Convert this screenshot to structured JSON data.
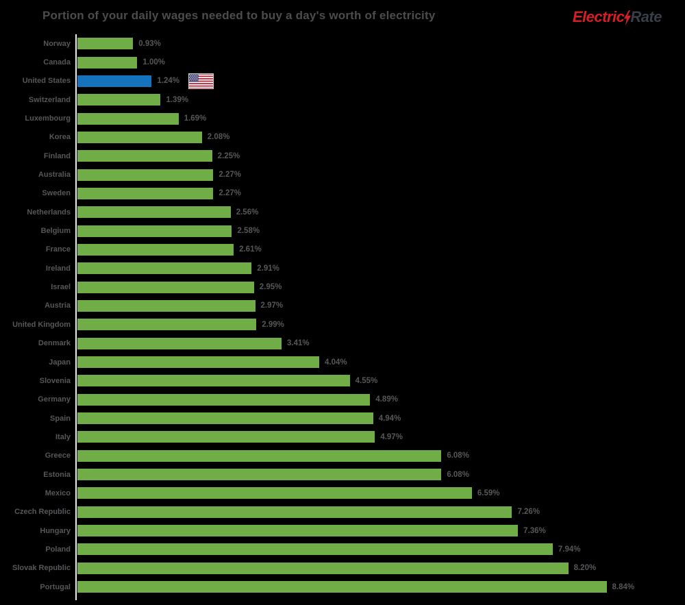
{
  "page": {
    "background": "#000000"
  },
  "header": {
    "title": "Portion of your daily wages needed to buy a day's worth of electricity",
    "logo": {
      "part1": "Electric",
      "part2": "Rate",
      "part1_color": "#d41f27",
      "part2_color": "#3a3e46"
    }
  },
  "chart_data": {
    "type": "bar",
    "orientation": "horizontal",
    "title": "Portion of your daily wages needed to buy a day's worth of electricity",
    "xlabel": "",
    "ylabel": "",
    "xlim": [
      0,
      10
    ],
    "grid": false,
    "legend": false,
    "bar_color": "#70ad47",
    "highlight_color": "#1573bd",
    "highlight_index": 2,
    "highlight_marker": "us-flag",
    "categories": [
      "Norway",
      "Canada",
      "United States",
      "Switzerland",
      "Luxembourg",
      "Korea",
      "Finland",
      "Australia",
      "Sweden",
      "Netherlands",
      "Belgium",
      "France",
      "Ireland",
      "Israel",
      "Austria",
      "United Kingdom",
      "Denmark",
      "Japan",
      "Slovenia",
      "Germany",
      "Spain",
      "Italy",
      "Greece",
      "Estonia",
      "Mexico",
      "Czech Republic",
      "Hungary",
      "Poland",
      "Slovak Republic",
      "Portugal"
    ],
    "values": [
      0.93,
      1.0,
      1.24,
      1.39,
      1.69,
      2.08,
      2.25,
      2.27,
      2.27,
      2.56,
      2.58,
      2.61,
      2.91,
      2.95,
      2.97,
      2.99,
      3.41,
      4.04,
      4.55,
      4.89,
      4.94,
      4.97,
      6.08,
      6.08,
      6.59,
      7.26,
      7.36,
      7.94,
      8.2,
      8.84
    ],
    "labels": [
      "0.93%",
      "1.00%",
      "1.24%",
      "1.39%",
      "1.69%",
      "2.08%",
      "2.25%",
      "2.27%",
      "2.27%",
      "2.56%",
      "2.58%",
      "2.61%",
      "2.91%",
      "2.95%",
      "2.97%",
      "2.99%",
      "3.41%",
      "4.04%",
      "4.55%",
      "4.89%",
      "4.94%",
      "4.97%",
      "6.08%",
      "6.08%",
      "6.59%",
      "7.26%",
      "7.36%",
      "7.94%",
      "8.20%",
      "8.84%"
    ]
  }
}
